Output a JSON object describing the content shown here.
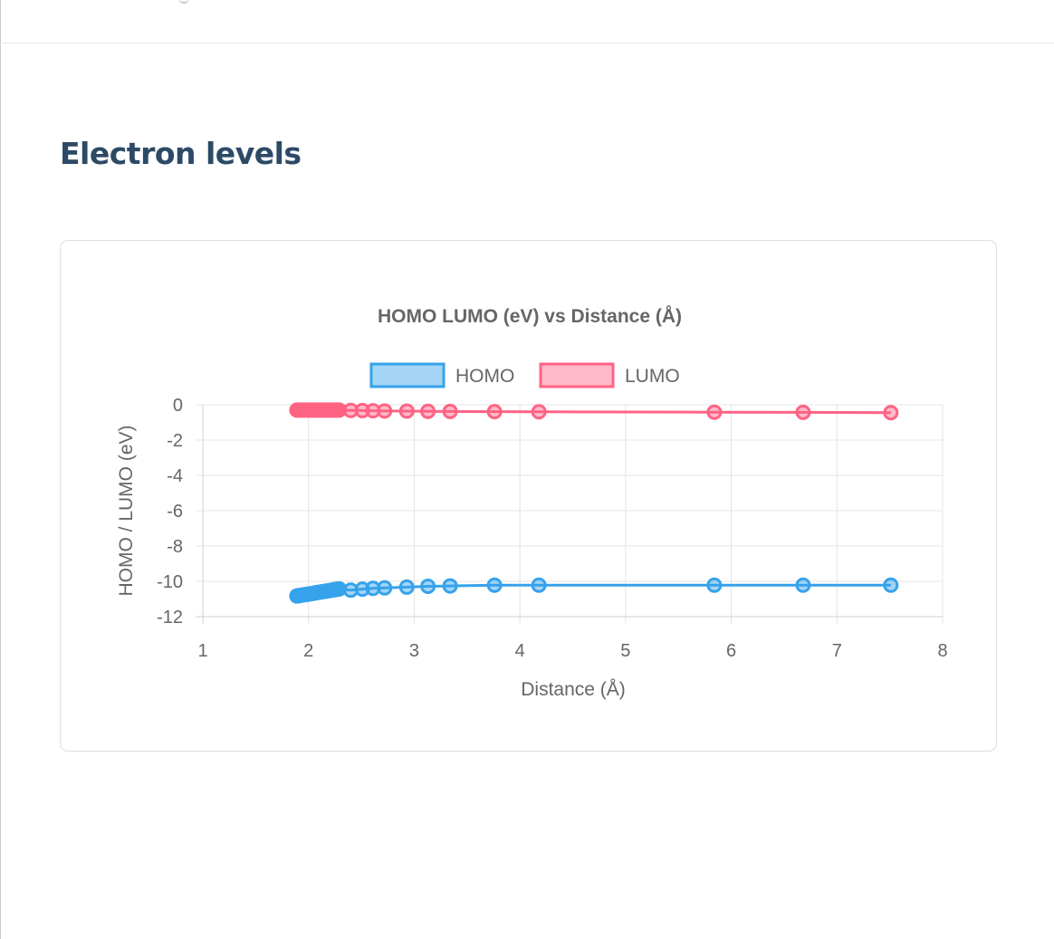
{
  "section": {
    "title": "Electron levels"
  },
  "chart_data": {
    "type": "scatter",
    "title": "HOMO LUMO (eV) vs Distance (Å)",
    "xlabel": "Distance (Å)",
    "ylabel": "HOMO / LUMO (eV)",
    "xlim": [
      1,
      8
    ],
    "ylim": [
      -12,
      0
    ],
    "xticks": [
      "1",
      "2",
      "3",
      "4",
      "5",
      "6",
      "7",
      "8"
    ],
    "yticks": [
      "0",
      "-2",
      "-4",
      "-6",
      "-8",
      "-10",
      "-12"
    ],
    "grid": true,
    "legend_position": "top",
    "show_line": true,
    "series": [
      {
        "name": "HOMO",
        "color": "#36a2eb",
        "fill": "rgba(54,162,235,0.45)",
        "points": [
          [
            1.89,
            -10.83
          ],
          [
            1.91,
            -10.81
          ],
          [
            1.93,
            -10.79
          ],
          [
            1.95,
            -10.77
          ],
          [
            1.97,
            -10.75
          ],
          [
            1.99,
            -10.73
          ],
          [
            2.01,
            -10.71
          ],
          [
            2.03,
            -10.69
          ],
          [
            2.05,
            -10.67
          ],
          [
            2.07,
            -10.65
          ],
          [
            2.09,
            -10.63
          ],
          [
            2.11,
            -10.61
          ],
          [
            2.13,
            -10.59
          ],
          [
            2.15,
            -10.57
          ],
          [
            2.17,
            -10.55
          ],
          [
            2.19,
            -10.53
          ],
          [
            2.21,
            -10.51
          ],
          [
            2.23,
            -10.49
          ],
          [
            2.25,
            -10.47
          ],
          [
            2.27,
            -10.45
          ],
          [
            2.29,
            -10.43
          ],
          [
            2.4,
            -10.5
          ],
          [
            2.51,
            -10.44
          ],
          [
            2.61,
            -10.4
          ],
          [
            2.72,
            -10.37
          ],
          [
            2.93,
            -10.33
          ],
          [
            3.13,
            -10.28
          ],
          [
            3.34,
            -10.26
          ],
          [
            3.76,
            -10.22
          ],
          [
            4.18,
            -10.22
          ],
          [
            5.84,
            -10.22
          ],
          [
            6.68,
            -10.22
          ],
          [
            7.51,
            -10.22
          ]
        ]
      },
      {
        "name": "LUMO",
        "color": "#ff6384",
        "fill": "rgba(255,99,132,0.45)",
        "points": [
          [
            1.89,
            -0.3
          ],
          [
            1.91,
            -0.3
          ],
          [
            1.93,
            -0.3
          ],
          [
            1.95,
            -0.3
          ],
          [
            1.97,
            -0.3
          ],
          [
            1.99,
            -0.3
          ],
          [
            2.01,
            -0.3
          ],
          [
            2.03,
            -0.3
          ],
          [
            2.05,
            -0.3
          ],
          [
            2.07,
            -0.3
          ],
          [
            2.09,
            -0.3
          ],
          [
            2.11,
            -0.3
          ],
          [
            2.13,
            -0.3
          ],
          [
            2.15,
            -0.3
          ],
          [
            2.17,
            -0.3
          ],
          [
            2.19,
            -0.3
          ],
          [
            2.21,
            -0.3
          ],
          [
            2.23,
            -0.3
          ],
          [
            2.25,
            -0.3
          ],
          [
            2.27,
            -0.3
          ],
          [
            2.29,
            -0.3
          ],
          [
            2.4,
            -0.32
          ],
          [
            2.51,
            -0.33
          ],
          [
            2.61,
            -0.34
          ],
          [
            2.72,
            -0.35
          ],
          [
            2.93,
            -0.36
          ],
          [
            3.13,
            -0.37
          ],
          [
            3.34,
            -0.38
          ],
          [
            3.76,
            -0.39
          ],
          [
            4.18,
            -0.4
          ],
          [
            5.84,
            -0.42
          ],
          [
            6.68,
            -0.43
          ],
          [
            7.51,
            -0.45
          ]
        ]
      }
    ]
  }
}
